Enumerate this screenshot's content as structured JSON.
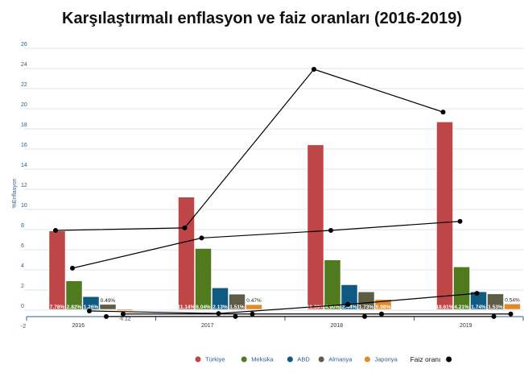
{
  "chart_data": {
    "type": "bar",
    "title": "Karşılaştırmalı enflasyon ve faiz oranları (2016-2019)",
    "ylabel": "%Enflasyon",
    "xlabel": "",
    "ylim": [
      -2,
      26
    ],
    "yticks": [
      -2,
      0,
      2,
      4,
      6,
      8,
      10,
      12,
      14,
      16,
      18,
      20,
      22,
      24,
      26
    ],
    "grid": true,
    "legend_position": "bottom",
    "categories": [
      "2016",
      "2017",
      "2018",
      "2019"
    ],
    "series": [
      {
        "name": "Türkiye",
        "color": "#bf4646",
        "values": [
          7.78,
          11.14,
          16.33,
          18.61
        ],
        "labels": [
          "7.78%",
          "11.14%",
          "16.33%",
          "18.61%"
        ]
      },
      {
        "name": "Meksika",
        "color": "#4f7a1e",
        "values": [
          2.82,
          6.04,
          4.9,
          4.21
        ],
        "labels": [
          "2.82%",
          "6.04%",
          "4.90%",
          "4.21%"
        ]
      },
      {
        "name": "ABD",
        "color": "#0f5a80",
        "values": [
          1.26,
          2.13,
          2.44,
          1.74
        ],
        "labels": [
          "1.26%",
          "2.13%",
          "2.44%",
          "1.74%"
        ]
      },
      {
        "name": "Almanya",
        "color": "#5e5c45",
        "values": [
          0.49,
          1.51,
          1.73,
          1.53
        ],
        "labels": [
          "0.49%",
          "1.51%",
          "1.73%",
          "1.53%"
        ]
      },
      {
        "name": "Japonya",
        "color": "#e08a2c",
        "values": [
          -0.12,
          0.47,
          0.98,
          0.54
        ],
        "labels": [
          "-0.12",
          "0.47%",
          "0.98%",
          "0.54%"
        ]
      }
    ],
    "interest_legend": "Faiz oranı",
    "interest_rates": [
      {
        "name": "Türkiye",
        "values": [
          8.0,
          8.25,
          24.0,
          19.75
        ]
      },
      {
        "name": "Meksika",
        "values": [
          4.25,
          7.25,
          8.0,
          8.9
        ]
      },
      {
        "name": "ABD",
        "values": [
          0.0,
          -0.25,
          0.65,
          1.75
        ]
      },
      {
        "name": "Almanya",
        "values": [
          -0.55,
          -0.55,
          -0.55,
          -0.55
        ]
      },
      {
        "name": "Japonya",
        "values": [
          -0.3,
          -0.3,
          -0.3,
          -0.3
        ]
      }
    ]
  }
}
